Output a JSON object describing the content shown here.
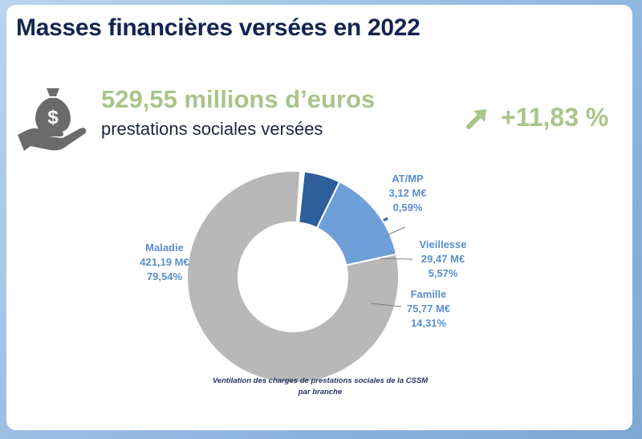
{
  "title": "Masses financières versées en 2022",
  "summary": {
    "amount": "529,55 millions d’euros",
    "subtitle": "prestations sociales versées",
    "growth": "+11,83 %",
    "icon": "money-bag-hand-icon",
    "growth_icon": "arrow-up-right-icon"
  },
  "colors": {
    "title": "#13254f",
    "accent_green": "#a9c58a",
    "label_blue": "#5a8fc8"
  },
  "chart_data": {
    "type": "pie",
    "variant": "donut",
    "caption": "Ventilation des charges de prestations sociales de la CSSM par branche",
    "slices": [
      {
        "name": "Maladie",
        "value": 421.19,
        "value_label": "421,19 M€",
        "percent": 79.54,
        "percent_label": "79,54%",
        "color": "#b8b8b8"
      },
      {
        "name": "AT/MP",
        "value": 3.12,
        "value_label": "3,12 M€",
        "percent": 0.59,
        "percent_label": "0,59%",
        "color": "#3f6fa8"
      },
      {
        "name": "Vieillesse",
        "value": 29.47,
        "value_label": "29,47 M€",
        "percent": 5.57,
        "percent_label": "5,57%",
        "color": "#2f5f9a"
      },
      {
        "name": "Famille",
        "value": 75.77,
        "value_label": "75,77 M€",
        "percent": 14.31,
        "percent_label": "14,31%",
        "color": "#6f9fd8"
      }
    ]
  }
}
